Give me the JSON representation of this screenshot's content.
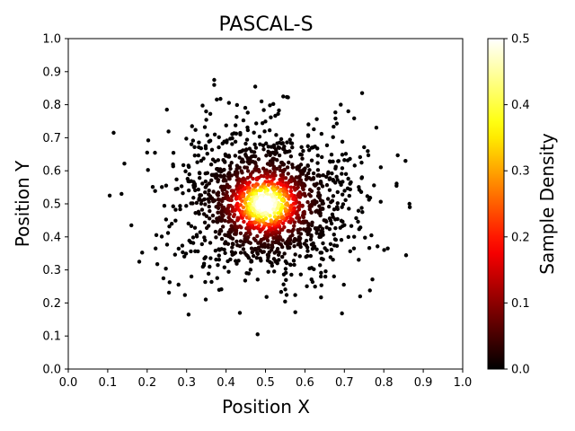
{
  "chart_data": {
    "type": "scatter",
    "title": "PASCAL-S",
    "xlabel": "Position X",
    "ylabel": "Position Y",
    "xlim": [
      0.0,
      1.0
    ],
    "ylim": [
      0.0,
      1.0
    ],
    "xticks": [
      "0.0",
      "0.1",
      "0.2",
      "0.3",
      "0.4",
      "0.5",
      "0.6",
      "0.7",
      "0.8",
      "0.9",
      "1.0"
    ],
    "yticks": [
      "0.0",
      "0.1",
      "0.2",
      "0.3",
      "0.4",
      "0.5",
      "0.6",
      "0.7",
      "0.8",
      "0.9",
      "1.0"
    ],
    "grid": false,
    "colormap": "hot",
    "colorbar": {
      "label": "Sample Density",
      "range": [
        0.0,
        0.5
      ],
      "ticks": [
        "0.0",
        "0.1",
        "0.2",
        "0.3",
        "0.4",
        "0.5"
      ]
    },
    "distribution": {
      "center": [
        0.5,
        0.5
      ],
      "spread": 0.12,
      "count": 1500
    },
    "points": [
      [
        0.115,
        0.715
      ],
      [
        0.105,
        0.525
      ],
      [
        0.135,
        0.53
      ],
      [
        0.16,
        0.435
      ],
      [
        0.18,
        0.325
      ],
      [
        0.305,
        0.165
      ],
      [
        0.435,
        0.17
      ],
      [
        0.48,
        0.105
      ],
      [
        0.37,
        0.875
      ],
      [
        0.37,
        0.86
      ],
      [
        0.745,
        0.835
      ],
      [
        0.855,
        0.63
      ],
      [
        0.865,
        0.5
      ],
      [
        0.81,
        0.365
      ],
      [
        0.74,
        0.22
      ],
      [
        0.545,
        0.825
      ],
      [
        0.49,
        0.81
      ],
      [
        0.25,
        0.785
      ],
      [
        0.71,
        0.78
      ],
      [
        0.2,
        0.655
      ]
    ]
  }
}
